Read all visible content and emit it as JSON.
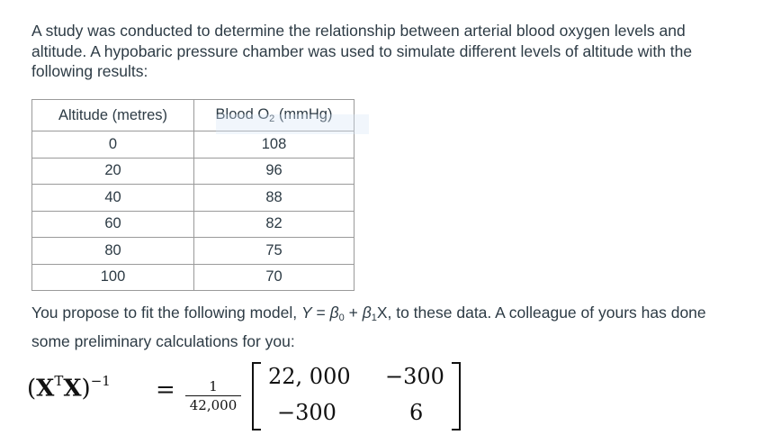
{
  "intro_text": "A study was conducted to determine the relationship between arterial blood oxygen levels and altitude. A hypobaric pressure chamber was used to simulate different levels of altitude with the following results:",
  "table": {
    "header_altitude": "Altitude (metres)",
    "header_blood_prefix": "Blood O",
    "header_blood_sub": "2",
    "header_blood_suffix": " (mmHg)",
    "rows": [
      {
        "altitude": "0",
        "blood": "108"
      },
      {
        "altitude": "20",
        "blood": "96"
      },
      {
        "altitude": "40",
        "blood": "88"
      },
      {
        "altitude": "60",
        "blood": "82"
      },
      {
        "altitude": "80",
        "blood": "75"
      },
      {
        "altitude": "100",
        "blood": "70"
      }
    ]
  },
  "model_text": {
    "before": "You propose to fit the following model, ",
    "y": "Y",
    "eq": " = ",
    "beta": "β",
    "sub0": "0",
    "plus": " + ",
    "sub1": "1",
    "x": "X",
    "after": ", to these data. A colleague of yours has done some preliminary calculations for you:"
  },
  "equation": {
    "lhs_open": "(",
    "lhs_x": "X",
    "lhs_t": "T",
    "lhs_close": ")",
    "lhs_exp": "−1",
    "equals": "=",
    "frac_num": "1",
    "frac_den": "42,000",
    "matrix": [
      [
        "22, 000",
        "−300"
      ],
      [
        "−300",
        "6"
      ]
    ]
  }
}
